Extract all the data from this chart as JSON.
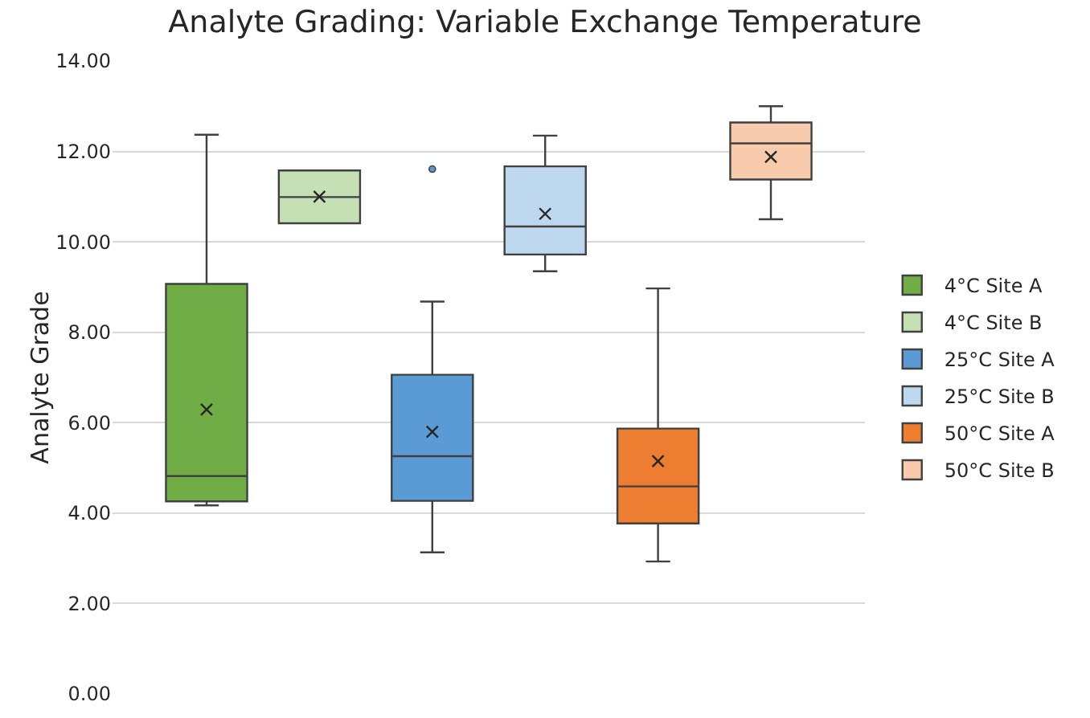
{
  "chart_data": {
    "type": "box",
    "title": "Analyte Grading: Variable Exchange Temperature",
    "ylabel": "Analyte Grade",
    "categories": [
      null
    ],
    "ylim": [
      0,
      14
    ],
    "yticks": [
      {
        "value": 0,
        "label": "0.00"
      },
      {
        "value": 2,
        "label": "2.00"
      },
      {
        "value": 4,
        "label": "4.00"
      },
      {
        "value": 6,
        "label": "6.00"
      },
      {
        "value": 8,
        "label": "8.00"
      },
      {
        "value": 10,
        "label": "10.00"
      },
      {
        "value": 12,
        "label": "12.00"
      },
      {
        "value": 14,
        "label": "14.00"
      }
    ],
    "grid": "y",
    "legend": "right",
    "tick_labels": "y",
    "series": [
      {
        "name": "4°C Site A",
        "color": "#70ad47",
        "boxes": [
          {
            "low": 4.17,
            "q1": 4.26,
            "median": 4.82,
            "q3": 9.07,
            "high": 12.37,
            "mean": 6.29
          }
        ]
      },
      {
        "name": "4°C Site B",
        "color": "#c5e0b4",
        "boxes": [
          {
            "low": 10.41,
            "q1": 10.41,
            "median": 10.99,
            "q3": 11.58,
            "high": 11.58,
            "mean": 11.0
          }
        ]
      },
      {
        "name": "25°C Site A",
        "color": "#5b9bd5",
        "boxes": [
          {
            "low": 3.13,
            "q1": 4.27,
            "median": 5.26,
            "q3": 7.06,
            "high": 8.68,
            "mean": 5.8,
            "outliers": [
              11.61
            ]
          }
        ]
      },
      {
        "name": "25°C Site B",
        "color": "#bdd7ee",
        "boxes": [
          {
            "low": 9.35,
            "q1": 9.72,
            "median": 10.34,
            "q3": 11.67,
            "high": 12.35,
            "mean": 10.62
          }
        ]
      },
      {
        "name": "50°C Site A",
        "color": "#ed7d31",
        "boxes": [
          {
            "low": 2.93,
            "q1": 3.77,
            "median": 4.59,
            "q3": 5.87,
            "high": 8.97,
            "mean": 5.15
          }
        ]
      },
      {
        "name": "50°C Site B",
        "color": "#f8cbad",
        "boxes": [
          {
            "low": 10.5,
            "q1": 11.38,
            "median": 12.18,
            "q3": 12.64,
            "high": 13.0,
            "mean": 11.88
          }
        ]
      }
    ]
  }
}
